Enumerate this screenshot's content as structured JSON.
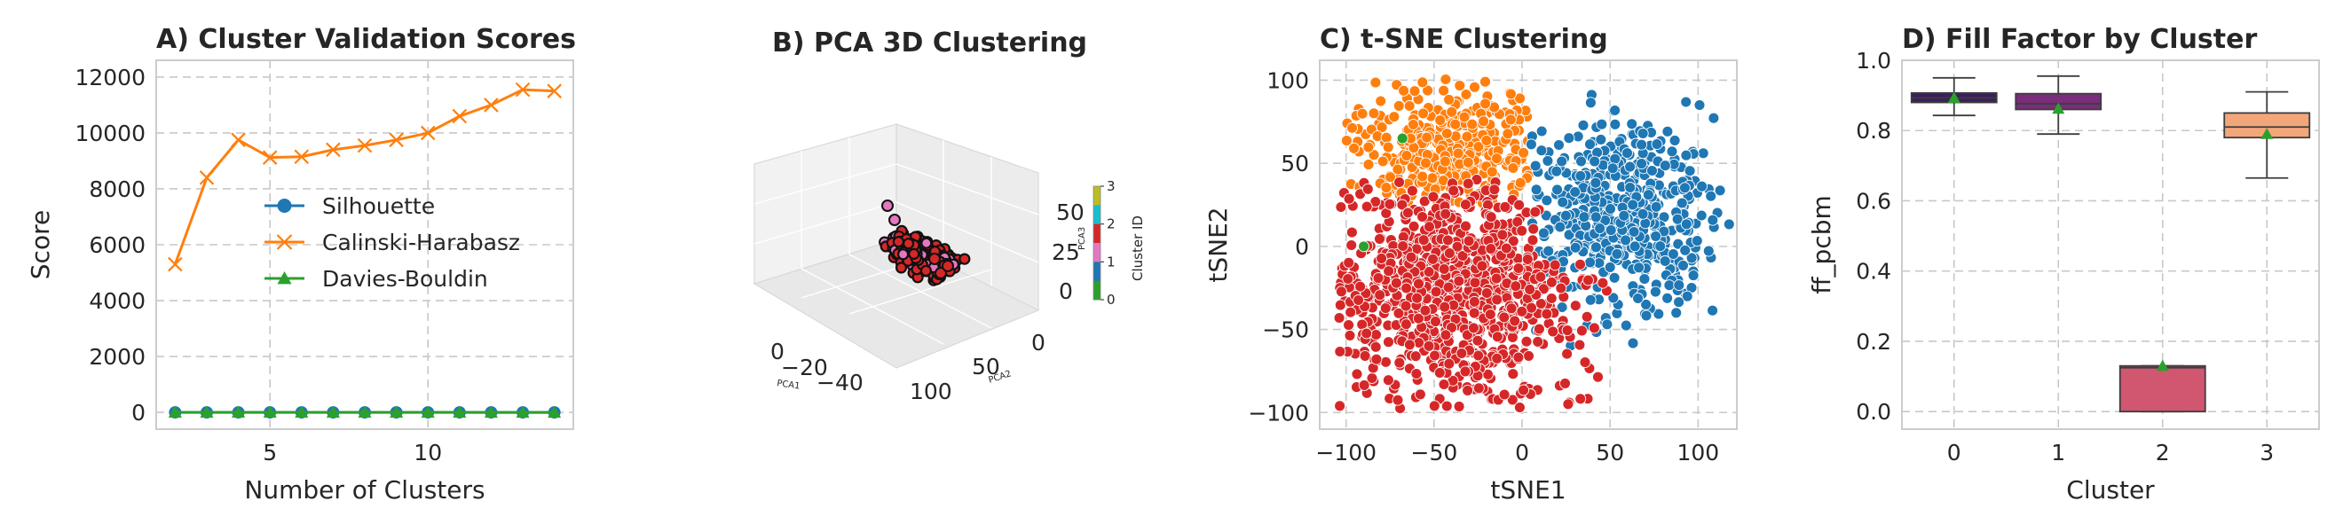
{
  "chart_data": [
    {
      "type": "line",
      "title": "A) Cluster Validation Scores",
      "xlabel": "Number of Clusters",
      "ylabel": "Score",
      "xlim": [
        1.4,
        14.6
      ],
      "ylim": [
        -600,
        12600
      ],
      "xticks": [
        5,
        10
      ],
      "yticks": [
        0,
        2000,
        4000,
        6000,
        8000,
        10000,
        12000
      ],
      "grid": true,
      "legend_position": "center",
      "x": [
        2,
        3,
        4,
        5,
        6,
        7,
        8,
        9,
        10,
        11,
        12,
        13,
        14
      ],
      "series": [
        {
          "name": "Silhouette",
          "color": "#1f77b4",
          "marker": "circle",
          "values": [
            0.35,
            0.3,
            0.28,
            0.27,
            0.25,
            0.24,
            0.23,
            0.22,
            0.22,
            0.21,
            0.2,
            0.2,
            0.19
          ]
        },
        {
          "name": "Calinski-Harabasz",
          "color": "#ff7f0e",
          "marker": "x",
          "values": [
            5300,
            8400,
            9750,
            9120,
            9150,
            9400,
            9550,
            9750,
            10000,
            10600,
            11000,
            11550,
            11500
          ]
        },
        {
          "name": "Davies-Bouldin",
          "color": "#2ca02c",
          "marker": "triangle",
          "values": [
            1.1,
            1.05,
            1.0,
            0.98,
            0.97,
            0.95,
            0.94,
            0.93,
            0.92,
            0.91,
            0.9,
            0.9,
            0.89
          ]
        }
      ]
    },
    {
      "type": "scatter",
      "title": "B) PCA 3D Clustering",
      "xlabel": "PCA1",
      "ylabel": "PCA2",
      "zlabel": "PCA3",
      "xticks": [
        "0",
        "−20",
        "−40"
      ],
      "yticks": [
        "50",
        "100",
        "0"
      ],
      "zticks": [
        "0",
        "25",
        "50"
      ],
      "colorbar_label": "Cluster ID",
      "colorbar_ticks": [
        "0",
        "1",
        "2",
        "3"
      ],
      "colorbar_colors": [
        "#2ca02c",
        "#1f77b4",
        "#e377c2",
        "#d62728",
        "#17becf",
        "#bcbd22"
      ]
    },
    {
      "type": "scatter",
      "title": "C) t-SNE Clustering",
      "xlabel": "tSNE1",
      "ylabel": "tSNE2",
      "xlim": [
        -115,
        122
      ],
      "ylim": [
        -110,
        112
      ],
      "xticks": [
        -100,
        -50,
        0,
        50,
        100
      ],
      "xtick_labels": [
        "−100",
        "−50",
        "0",
        "50",
        "100"
      ],
      "yticks": [
        -100,
        -50,
        0,
        50,
        100
      ],
      "ytick_labels": [
        "−100",
        "−50",
        "0",
        "50",
        "100"
      ],
      "grid": true,
      "clusters": [
        {
          "id": 0,
          "color": "#1f77b4",
          "center": [
            55,
            20
          ],
          "spread": [
            26,
            28
          ],
          "count": 520
        },
        {
          "id": 1,
          "color": "#ff7f0e",
          "center": [
            -42,
            58
          ],
          "spread": [
            28,
            18
          ],
          "count": 420
        },
        {
          "id": 3,
          "color": "#d62728",
          "center": [
            -38,
            -28
          ],
          "spread": [
            38,
            32
          ],
          "count": 1000
        },
        {
          "id": 2,
          "color": "#2ca02c",
          "points": [
            [
              -68,
              65
            ],
            [
              -90,
              0
            ]
          ]
        }
      ]
    },
    {
      "type": "box",
      "title": "D) Fill Factor by Cluster",
      "xlabel": "Cluster",
      "ylabel": "ff_pcbm",
      "categories": [
        "0",
        "1",
        "2",
        "3"
      ],
      "ylim": [
        -0.05,
        1.0
      ],
      "yticks": [
        0.0,
        0.2,
        0.4,
        0.6,
        0.8,
        1.0
      ],
      "ytick_labels": [
        "0.0",
        "0.2",
        "0.4",
        "0.6",
        "0.8",
        "1.0"
      ],
      "grid": true,
      "boxes": [
        {
          "category": "0",
          "color": "#3b1f5c",
          "whislo": 0.843,
          "q1": 0.88,
          "med": 0.893,
          "q3": 0.907,
          "whishi": 0.95,
          "mean": 0.893
        },
        {
          "category": "1",
          "color": "#7a2d7a",
          "whislo": 0.79,
          "q1": 0.86,
          "med": 0.876,
          "q3": 0.905,
          "whishi": 0.955,
          "mean": 0.862
        },
        {
          "category": "2",
          "color": "#d1566f",
          "whislo": 0.0,
          "q1": 0.0,
          "med": 0.125,
          "q3": 0.13,
          "whishi": 0.13,
          "mean": 0.13
        },
        {
          "category": "3",
          "color": "#f3a679",
          "whislo": 0.665,
          "q1": 0.78,
          "med": 0.81,
          "q3": 0.85,
          "whishi": 0.91,
          "mean": 0.79
        }
      ],
      "mean_marker_color": "#2ca02c"
    }
  ]
}
